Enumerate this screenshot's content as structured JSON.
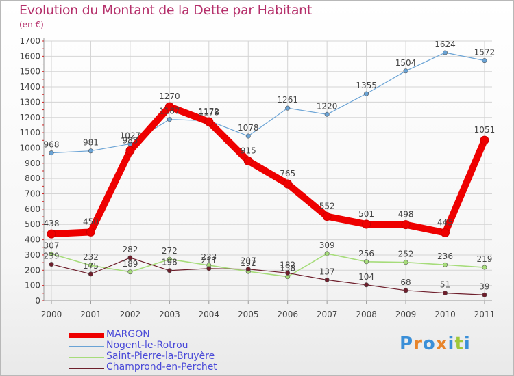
{
  "title": "Evolution du Montant de la Dette par Habitant",
  "subtitle": "(en €)",
  "logo": {
    "letters": [
      "P",
      "r",
      "o",
      "x",
      "i",
      "t",
      "i"
    ],
    "colors": [
      "#3a8fd8",
      "#e8842a",
      "#3a8fd8",
      "#e8842a",
      "#3a8fd8",
      "#a0c83a",
      "#3a8fd8"
    ]
  },
  "chart_data": {
    "type": "line",
    "title": "Evolution du Montant de la Dette par Habitant",
    "subtitle": "(en €)",
    "xlabel": "",
    "ylabel": "",
    "categories": [
      "2000",
      "2001",
      "2002",
      "2003",
      "2004",
      "2005",
      "2006",
      "2007",
      "2008",
      "2009",
      "2010",
      "2011"
    ],
    "ylim": [
      0,
      1700
    ],
    "yticks": [
      0,
      100,
      200,
      300,
      400,
      500,
      600,
      700,
      800,
      900,
      1000,
      1100,
      1200,
      1300,
      1400,
      1500,
      1600,
      1700
    ],
    "grid": true,
    "legend_position": "bottom-left",
    "series": [
      {
        "name": "Nogent-le-Rotrou",
        "color": "#6aa3d5",
        "width": 1.2,
        "values": [
          968,
          981,
          1027,
          1187,
          1178,
          1078,
          1261,
          1220,
          1355,
          1504,
          1624,
          1572
        ]
      },
      {
        "name": "Saint-Pierre-la-Bruyère",
        "color": "#a6dc7a",
        "width": 1.6,
        "values": [
          307,
          232,
          189,
          272,
          233,
          192,
          158,
          309,
          256,
          252,
          236,
          219
        ]
      },
      {
        "name": "Champrond-en-Perchet",
        "color": "#6e1f2c",
        "width": 1.2,
        "values": [
          239,
          175,
          282,
          198,
          211,
          207,
          182,
          137,
          104,
          68,
          51,
          39
        ]
      },
      {
        "name": "MARGON",
        "color": "#ee0000",
        "width": 10,
        "values": [
          438,
          450,
          983,
          1270,
          1172,
          915,
          765,
          552,
          501,
          498,
          445,
          1051
        ]
      }
    ]
  }
}
